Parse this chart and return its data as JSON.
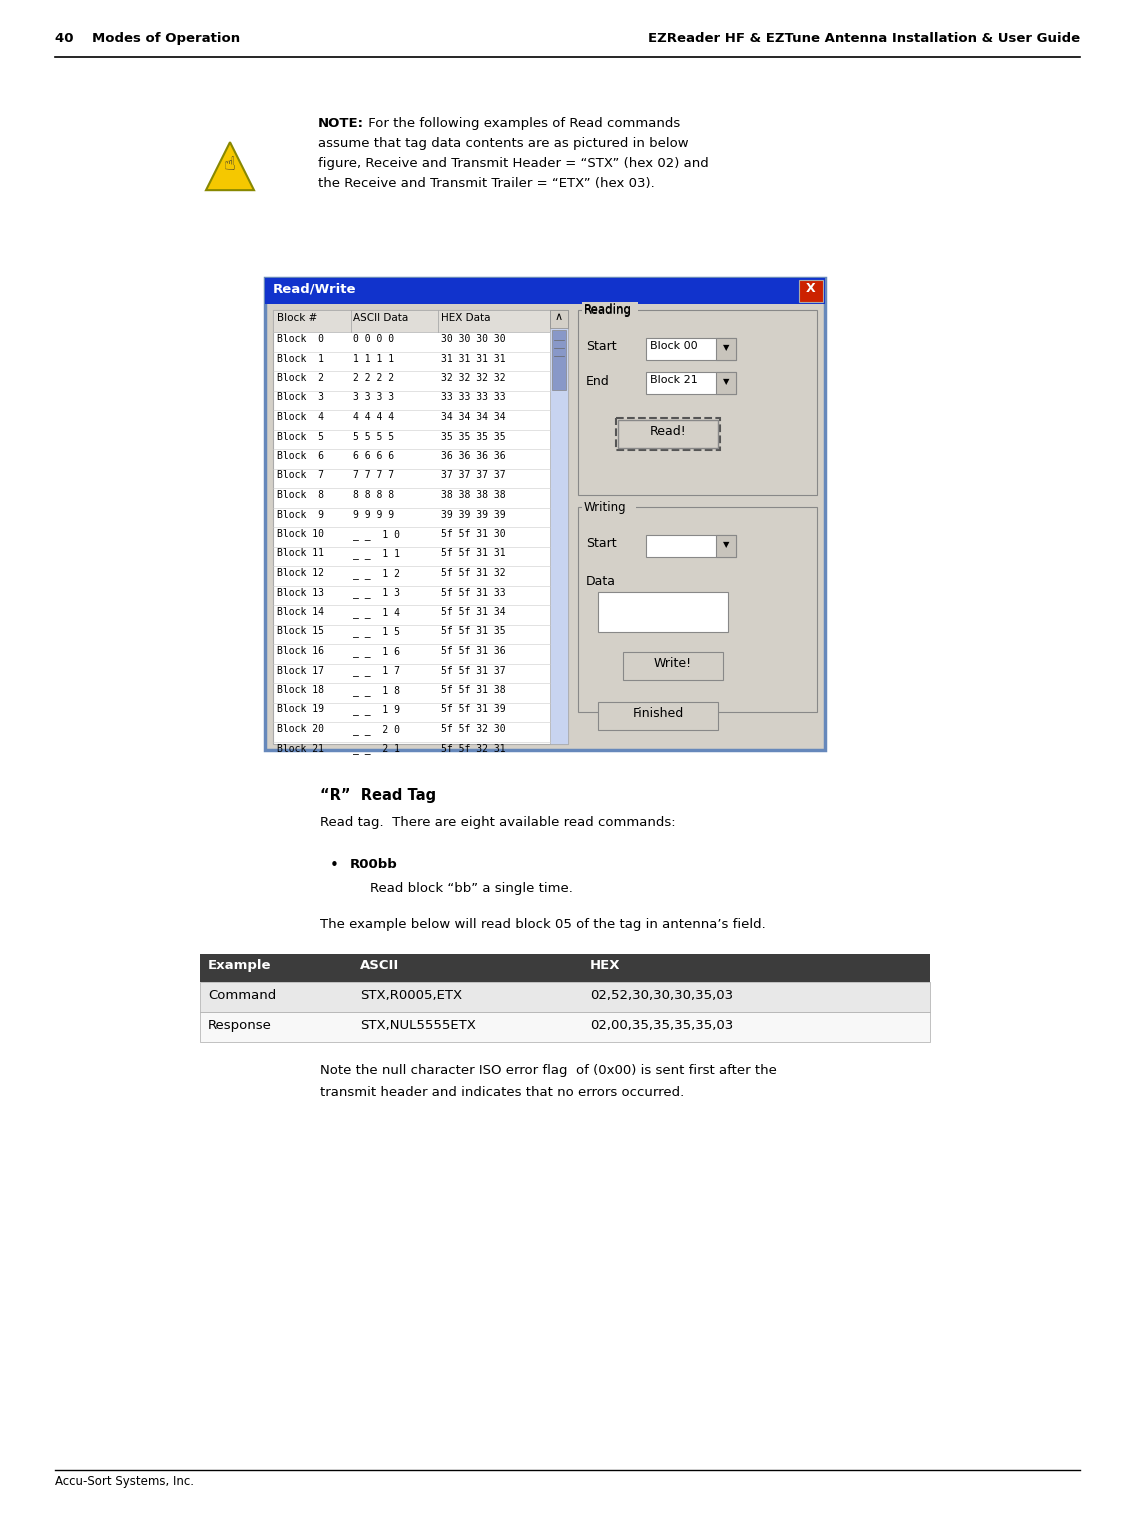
{
  "page_width": 11.11,
  "page_height": 14.95,
  "dpi": 100,
  "bg_color": "#ffffff",
  "header_left": "40    Modes of Operation",
  "header_right": "EZReader HF & EZTune Antenna Installation & User Guide",
  "footer_text": "Accu-Sort Systems, Inc.",
  "note_bold": "NOTE:",
  "note_lines": [
    " For the following examples of Read commands",
    "assume that tag data contents are as pictured in below",
    "figure, Receive and Transmit Header = “STX” (hex 02) and",
    "the Receive and Transmit Trailer = “ETX” (hex 03)."
  ],
  "section_title": "“R”  Read Tag",
  "section_body": "Read tag.  There are eight available read commands:",
  "bullet_bold": "R00bb",
  "bullet_text": "Read block “bb” a single time.",
  "example_intro": "The example below will read block 05 of the tag in antenna’s field.",
  "table_header": [
    "Example",
    "ASCII",
    "HEX"
  ],
  "table_header_bg": "#3c3c3c",
  "table_rows": [
    [
      "Command",
      "STX,R0005,ETX",
      "02,52,30,30,30,35,03"
    ],
    [
      "Response",
      "STX,NUL5555ETX",
      "02,00,35,35,35,35,03"
    ]
  ],
  "table_row_colors": [
    "#e8e8e8",
    "#f8f8f8"
  ],
  "note_footer_lines": [
    "Note the null character ISO error flag  of (0x00) is sent first after the",
    "transmit header and indicates that no errors occurred."
  ],
  "dialog_title": "Read/Write",
  "dialog_bg": "#d4d0c8",
  "dialog_border": "#0000dd",
  "dialog_titlebar_color": "#1133cc",
  "dialog_close_color": "#cc2200",
  "table_col_header": [
    "Block #",
    "ASCII Data",
    "HEX Data"
  ],
  "table_data": [
    [
      "Block  0",
      "0 0 0 0",
      "30 30 30 30"
    ],
    [
      "Block  1",
      "1 1 1 1",
      "31 31 31 31"
    ],
    [
      "Block  2",
      "2 2 2 2",
      "32 32 32 32"
    ],
    [
      "Block  3",
      "3 3 3 3",
      "33 33 33 33"
    ],
    [
      "Block  4",
      "4 4 4 4",
      "34 34 34 34"
    ],
    [
      "Block  5",
      "5 5 5 5",
      "35 35 35 35"
    ],
    [
      "Block  6",
      "6 6 6 6",
      "36 36 36 36"
    ],
    [
      "Block  7",
      "7 7 7 7",
      "37 37 37 37"
    ],
    [
      "Block  8",
      "8 8 8 8",
      "38 38 38 38"
    ],
    [
      "Block  9",
      "9 9 9 9",
      "39 39 39 39"
    ],
    [
      "Block 10",
      "_ _  1 0",
      "5f 5f 31 30"
    ],
    [
      "Block 11",
      "_ _  1 1",
      "5f 5f 31 31"
    ],
    [
      "Block 12",
      "_ _  1 2",
      "5f 5f 31 32"
    ],
    [
      "Block 13",
      "_ _  1 3",
      "5f 5f 31 33"
    ],
    [
      "Block 14",
      "_ _  1 4",
      "5f 5f 31 34"
    ],
    [
      "Block 15",
      "_ _  1 5",
      "5f 5f 31 35"
    ],
    [
      "Block 16",
      "_ _  1 6",
      "5f 5f 31 36"
    ],
    [
      "Block 17",
      "_ _  1 7",
      "5f 5f 31 37"
    ],
    [
      "Block 18",
      "_ _  1 8",
      "5f 5f 31 38"
    ],
    [
      "Block 19",
      "_ _  1 9",
      "5f 5f 31 39"
    ],
    [
      "Block 20",
      "_ _  2 0",
      "5f 5f 32 30"
    ],
    [
      "Block 21",
      "_ _  2 1",
      "5f 5f 32 31"
    ]
  ],
  "reading_label": "Reading",
  "writing_label": "Writing",
  "start_label": "Start",
  "end_label": "End",
  "block00": "Block 00",
  "block21": "Block 21",
  "read_btn": "Read!",
  "write_btn": "Write!",
  "finished_btn": "Finished",
  "data_label": "Data",
  "scrollbar_color": "#c8d4f0",
  "scrollbar_thumb": "#8898c8"
}
